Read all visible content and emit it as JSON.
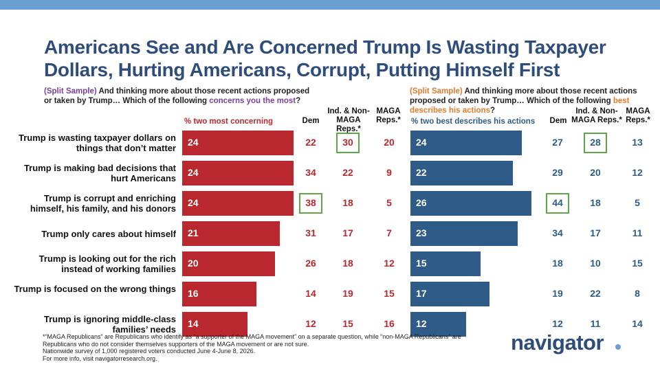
{
  "title": "Americans See and Are Concerned Trump Is Wasting Taxpayer Dollars, Hurting Americans, Corrupt, Putting Himself First",
  "left_question": {
    "tag": "(Split Sample)",
    "text": " And thinking more about those recent actions proposed or taken by Trump… Which of the following ",
    "highlight": "concerns you the most",
    "end": "?"
  },
  "right_question": {
    "tag": "(Split Sample)",
    "text": " And thinking more about those recent actions proposed or taken by Trump… Which of the following ",
    "highlight": "best describes his actions",
    "end": "?"
  },
  "column_headers": {
    "dem": "Dem",
    "ind": "Ind. & Non-MAGA Reps.*",
    "maga": "MAGA Reps.*"
  },
  "footnote": [
    "*“MAGA Republicans” are Republicans who identify as “a supporter of the MAGA movement” on a separate question, while “non-MAGA Republicans” are Republicans who do not consider themselves supporters of the MAGA movement or are not sure.",
    "Nationwide survey of 1,000 registered voters conducted June 4-June 8, 2026.",
    "For more info, visit navigatorresearch.org."
  ],
  "logo": "navigator",
  "colors": {
    "red": "#b8282e",
    "blue": "#2e5b87",
    "title": "#2f4d7c",
    "highlight_box": "#5aa846"
  },
  "chart_data": [
    {
      "type": "bar",
      "series_label": "% two most concerning",
      "categories": [
        "Trump is wasting taxpayer dollars on things that don’t matter",
        "Trump is making bad decisions that hurt Americans",
        "Trump is corrupt and enriching himself, his family, and his donors",
        "Trump only cares about himself",
        "Trump is looking out for the rich instead of working families",
        "Trump is focused on the wrong things",
        "Trump is ignoring middle-class families’ needs"
      ],
      "values": [
        24,
        24,
        24,
        21,
        20,
        16,
        14
      ],
      "subgroups": {
        "dem": [
          22,
          34,
          38,
          31,
          26,
          14,
          12
        ],
        "ind": [
          30,
          22,
          18,
          17,
          18,
          19,
          15
        ],
        "maga": [
          20,
          9,
          5,
          7,
          12,
          15,
          16
        ]
      },
      "highlighted": [
        {
          "group": "ind",
          "row": 0
        },
        {
          "group": "dem",
          "row": 2
        }
      ]
    },
    {
      "type": "bar",
      "series_label": "% two best describes his actions",
      "categories": [
        "Trump is wasting taxpayer dollars on things that don’t matter",
        "Trump is making bad decisions that hurt Americans",
        "Trump is corrupt and enriching himself, his family, and his donors",
        "Trump only cares about himself",
        "Trump is looking out for the rich instead of working families",
        "Trump is focused on the wrong things",
        "Trump is ignoring middle-class families’ needs"
      ],
      "values": [
        24,
        22,
        26,
        23,
        15,
        17,
        12
      ],
      "subgroups": {
        "dem": [
          27,
          29,
          44,
          34,
          18,
          19,
          12
        ],
        "ind": [
          28,
          20,
          18,
          17,
          10,
          22,
          11
        ],
        "maga": [
          13,
          12,
          5,
          11,
          15,
          8,
          14
        ]
      },
      "highlighted": [
        {
          "group": "ind",
          "row": 0
        },
        {
          "group": "dem",
          "row": 2
        }
      ]
    }
  ]
}
